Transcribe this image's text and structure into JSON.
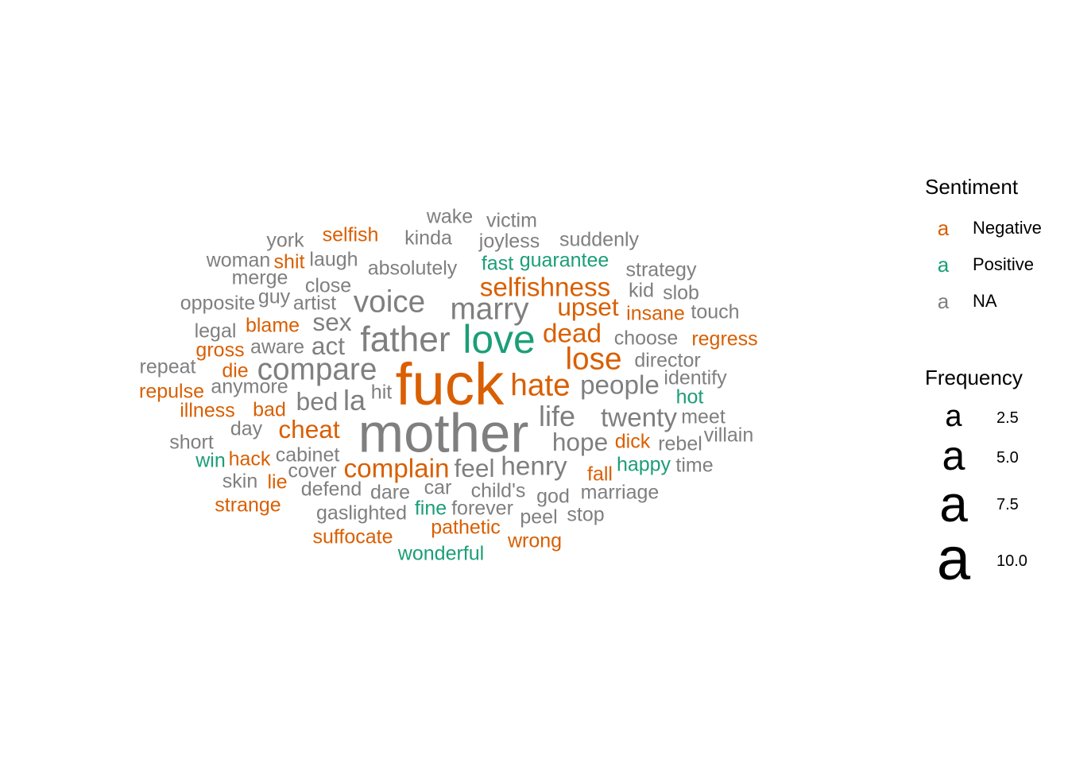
{
  "chart_data": {
    "type": "wordcloud",
    "colors": {
      "Negative": "#D95F02",
      "Positive": "#1B9E77",
      "NA": "#7F7F7F"
    },
    "legend": {
      "sentiment_title": "Sentiment",
      "sentiment_entries": [
        {
          "glyph": "a",
          "label": "Negative",
          "sentiment": "Negative"
        },
        {
          "glyph": "a",
          "label": "Positive",
          "sentiment": "Positive"
        },
        {
          "glyph": "a",
          "label": "NA",
          "sentiment": "NA"
        }
      ],
      "frequency_title": "Frequency",
      "frequency_entries": [
        {
          "glyph": "a",
          "label": "2.5",
          "value": 2.5
        },
        {
          "glyph": "a",
          "label": "5.0",
          "value": 5.0
        },
        {
          "glyph": "a",
          "label": "7.5",
          "value": 7.5
        },
        {
          "glyph": "a",
          "label": "10.0",
          "value": 10.0
        }
      ]
    },
    "words": [
      {
        "word": "fuck",
        "freq": 11,
        "sentiment": "Negative"
      },
      {
        "word": "mother",
        "freq": 10,
        "sentiment": "NA"
      },
      {
        "word": "love",
        "freq": 6.5,
        "sentiment": "Positive"
      },
      {
        "word": "father",
        "freq": 5.5,
        "sentiment": "NA"
      },
      {
        "word": "marry",
        "freq": 4.5,
        "sentiment": "NA"
      },
      {
        "word": "voice",
        "freq": 4.5,
        "sentiment": "NA"
      },
      {
        "word": "compare",
        "freq": 4.5,
        "sentiment": "NA"
      },
      {
        "word": "hate",
        "freq": 4.5,
        "sentiment": "Negative"
      },
      {
        "word": "lose",
        "freq": 4.5,
        "sentiment": "Negative"
      },
      {
        "word": "life",
        "freq": 4,
        "sentiment": "NA"
      },
      {
        "word": "la",
        "freq": 4,
        "sentiment": "NA"
      },
      {
        "word": "selfishness",
        "freq": 3.5,
        "sentiment": "Negative"
      },
      {
        "word": "people",
        "freq": 3.5,
        "sentiment": "NA"
      },
      {
        "word": "twenty",
        "freq": 3.5,
        "sentiment": "NA"
      },
      {
        "word": "henry",
        "freq": 3.5,
        "sentiment": "NA"
      },
      {
        "word": "complain",
        "freq": 3.5,
        "sentiment": "Negative"
      },
      {
        "word": "dead",
        "freq": 3.5,
        "sentiment": "Negative"
      },
      {
        "word": "upset",
        "freq": 3.2,
        "sentiment": "Negative"
      },
      {
        "word": "hope",
        "freq": 3.2,
        "sentiment": "NA"
      },
      {
        "word": "feel",
        "freq": 3.2,
        "sentiment": "NA"
      },
      {
        "word": "cheat",
        "freq": 3.2,
        "sentiment": "Negative"
      },
      {
        "word": "bed",
        "freq": 3.2,
        "sentiment": "NA"
      },
      {
        "word": "sex",
        "freq": 3.2,
        "sentiment": "NA"
      },
      {
        "word": "act",
        "freq": 3.2,
        "sentiment": "NA"
      },
      {
        "word": "wake",
        "freq": 2,
        "sentiment": "NA"
      },
      {
        "word": "victim",
        "freq": 2,
        "sentiment": "NA"
      },
      {
        "word": "york",
        "freq": 2,
        "sentiment": "NA"
      },
      {
        "word": "selfish",
        "freq": 2,
        "sentiment": "Negative"
      },
      {
        "word": "kinda",
        "freq": 2,
        "sentiment": "NA"
      },
      {
        "word": "joyless",
        "freq": 2,
        "sentiment": "NA"
      },
      {
        "word": "suddenly",
        "freq": 2,
        "sentiment": "NA"
      },
      {
        "word": "woman",
        "freq": 2,
        "sentiment": "NA"
      },
      {
        "word": "shit",
        "freq": 2,
        "sentiment": "Negative"
      },
      {
        "word": "laugh",
        "freq": 2,
        "sentiment": "NA"
      },
      {
        "word": "fast",
        "freq": 2,
        "sentiment": "Positive"
      },
      {
        "word": "guarantee",
        "freq": 2,
        "sentiment": "Positive"
      },
      {
        "word": "absolutely",
        "freq": 2,
        "sentiment": "NA"
      },
      {
        "word": "strategy",
        "freq": 2,
        "sentiment": "NA"
      },
      {
        "word": "merge",
        "freq": 2,
        "sentiment": "NA"
      },
      {
        "word": "close",
        "freq": 2,
        "sentiment": "NA"
      },
      {
        "word": "kid",
        "freq": 2,
        "sentiment": "NA"
      },
      {
        "word": "slob",
        "freq": 2,
        "sentiment": "NA"
      },
      {
        "word": "guy",
        "freq": 2,
        "sentiment": "NA"
      },
      {
        "word": "opposite",
        "freq": 2,
        "sentiment": "NA"
      },
      {
        "word": "artist",
        "freq": 2,
        "sentiment": "NA"
      },
      {
        "word": "insane",
        "freq": 2,
        "sentiment": "Negative"
      },
      {
        "word": "touch",
        "freq": 2,
        "sentiment": "NA"
      },
      {
        "word": "blame",
        "freq": 2,
        "sentiment": "Negative"
      },
      {
        "word": "legal",
        "freq": 2,
        "sentiment": "NA"
      },
      {
        "word": "choose",
        "freq": 2,
        "sentiment": "NA"
      },
      {
        "word": "regress",
        "freq": 2,
        "sentiment": "Negative"
      },
      {
        "word": "gross",
        "freq": 2,
        "sentiment": "Negative"
      },
      {
        "word": "aware",
        "freq": 2,
        "sentiment": "NA"
      },
      {
        "word": "director",
        "freq": 2,
        "sentiment": "NA"
      },
      {
        "word": "repeat",
        "freq": 2,
        "sentiment": "NA"
      },
      {
        "word": "die",
        "freq": 2,
        "sentiment": "Negative"
      },
      {
        "word": "identify",
        "freq": 2,
        "sentiment": "NA"
      },
      {
        "word": "anymore",
        "freq": 2,
        "sentiment": "NA"
      },
      {
        "word": "repulse",
        "freq": 2,
        "sentiment": "Negative"
      },
      {
        "word": "hit",
        "freq": 2,
        "sentiment": "NA"
      },
      {
        "word": "hot",
        "freq": 2,
        "sentiment": "Positive"
      },
      {
        "word": "illness",
        "freq": 2,
        "sentiment": "Negative"
      },
      {
        "word": "bad",
        "freq": 2,
        "sentiment": "Negative"
      },
      {
        "word": "meet",
        "freq": 2,
        "sentiment": "NA"
      },
      {
        "word": "day",
        "freq": 2,
        "sentiment": "NA"
      },
      {
        "word": "villain",
        "freq": 2,
        "sentiment": "NA"
      },
      {
        "word": "short",
        "freq": 2,
        "sentiment": "NA"
      },
      {
        "word": "dick",
        "freq": 2,
        "sentiment": "Negative"
      },
      {
        "word": "rebel",
        "freq": 2,
        "sentiment": "NA"
      },
      {
        "word": "win",
        "freq": 2,
        "sentiment": "Positive"
      },
      {
        "word": "hack",
        "freq": 2,
        "sentiment": "Negative"
      },
      {
        "word": "cabinet",
        "freq": 2,
        "sentiment": "NA"
      },
      {
        "word": "happy",
        "freq": 2,
        "sentiment": "Positive"
      },
      {
        "word": "time",
        "freq": 2,
        "sentiment": "NA"
      },
      {
        "word": "cover",
        "freq": 2,
        "sentiment": "NA"
      },
      {
        "word": "fall",
        "freq": 2,
        "sentiment": "Negative"
      },
      {
        "word": "skin",
        "freq": 2,
        "sentiment": "NA"
      },
      {
        "word": "lie",
        "freq": 2,
        "sentiment": "Negative"
      },
      {
        "word": "defend",
        "freq": 2,
        "sentiment": "NA"
      },
      {
        "word": "car",
        "freq": 2,
        "sentiment": "NA"
      },
      {
        "word": "child's",
        "freq": 2,
        "sentiment": "NA"
      },
      {
        "word": "dare",
        "freq": 2,
        "sentiment": "NA"
      },
      {
        "word": "god",
        "freq": 2,
        "sentiment": "NA"
      },
      {
        "word": "marriage",
        "freq": 2,
        "sentiment": "NA"
      },
      {
        "word": "strange",
        "freq": 2,
        "sentiment": "Negative"
      },
      {
        "word": "fine",
        "freq": 2,
        "sentiment": "Positive"
      },
      {
        "word": "forever",
        "freq": 2,
        "sentiment": "NA"
      },
      {
        "word": "gaslighted",
        "freq": 2,
        "sentiment": "NA"
      },
      {
        "word": "peel",
        "freq": 2,
        "sentiment": "NA"
      },
      {
        "word": "stop",
        "freq": 2,
        "sentiment": "NA"
      },
      {
        "word": "pathetic",
        "freq": 2,
        "sentiment": "Negative"
      },
      {
        "word": "suffocate",
        "freq": 2,
        "sentiment": "Negative"
      },
      {
        "word": "wrong",
        "freq": 2,
        "sentiment": "Negative"
      },
      {
        "word": "wonderful",
        "freq": 2,
        "sentiment": "Positive"
      }
    ]
  }
}
